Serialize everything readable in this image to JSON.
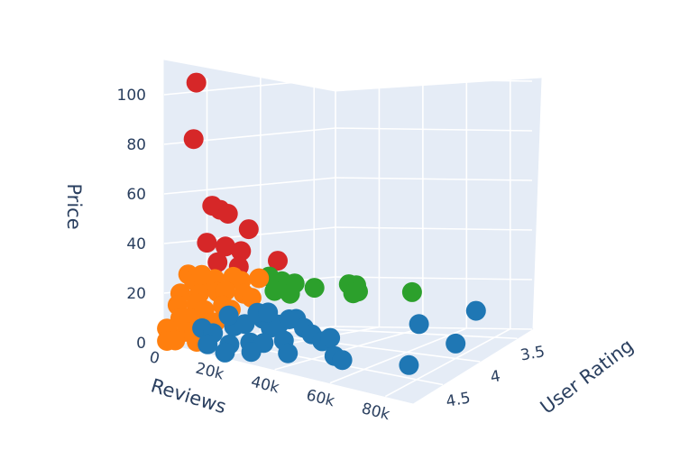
{
  "chart_data": {
    "type": "scatter",
    "title": "",
    "xlabel": "Reviews",
    "ylabel": "User Rating",
    "zlabel": "Price",
    "x_ticks": [
      "0",
      "20k",
      "40k",
      "60k",
      "80k"
    ],
    "y_ticks": [
      "3.5",
      "4",
      "4.5"
    ],
    "z_ticks": [
      "0",
      "20",
      "40",
      "60",
      "80",
      "100"
    ],
    "xlim": [
      0,
      90000
    ],
    "ylim": [
      3.3,
      4.9
    ],
    "zlim": [
      0,
      105
    ],
    "colors": {
      "background": "#ffffff",
      "pane": "#e5ecf6",
      "grid": "#ffffff",
      "text": "#2a3f5f"
    },
    "series": [
      {
        "name": "red",
        "color": "#d62728",
        "points": [
          {
            "reviews": 4000,
            "rating": 4.7,
            "price": 105
          },
          {
            "reviews": 3000,
            "rating": 4.7,
            "price": 82
          },
          {
            "reviews": 2000,
            "rating": 4.5,
            "price": 54
          },
          {
            "reviews": 5000,
            "rating": 4.5,
            "price": 53
          },
          {
            "reviews": 8000,
            "rating": 4.5,
            "price": 52
          },
          {
            "reviews": 12000,
            "rating": 4.4,
            "price": 46
          },
          {
            "reviews": 4000,
            "rating": 4.6,
            "price": 40
          },
          {
            "reviews": 11000,
            "rating": 4.6,
            "price": 40
          },
          {
            "reviews": 13000,
            "rating": 4.5,
            "price": 38
          },
          {
            "reviews": 16000,
            "rating": 4.6,
            "price": 33
          },
          {
            "reviews": 8000,
            "rating": 4.6,
            "price": 33
          },
          {
            "reviews": 27000,
            "rating": 4.5,
            "price": 37
          }
        ]
      },
      {
        "name": "green",
        "color": "#2ca02c",
        "points": [
          {
            "reviews": 16000,
            "rating": 4.3,
            "price": 27
          },
          {
            "reviews": 21000,
            "rating": 4.3,
            "price": 26
          },
          {
            "reviews": 26000,
            "rating": 4.3,
            "price": 26
          },
          {
            "reviews": 30000,
            "rating": 4.2,
            "price": 24
          },
          {
            "reviews": 40000,
            "rating": 4.1,
            "price": 26
          },
          {
            "reviews": 43000,
            "rating": 4.1,
            "price": 26
          },
          {
            "reviews": 38000,
            "rating": 4.0,
            "price": 21
          },
          {
            "reviews": 40000,
            "rating": 4.0,
            "price": 22
          },
          {
            "reviews": 55000,
            "rating": 3.8,
            "price": 21
          },
          {
            "reviews": 22000,
            "rating": 4.4,
            "price": 23
          },
          {
            "reviews": 28000,
            "rating": 4.4,
            "price": 23
          }
        ]
      },
      {
        "name": "orange",
        "color": "#ff7f0e",
        "points": [
          {
            "reviews": 1000,
            "rating": 4.7,
            "price": 27
          },
          {
            "reviews": 3000,
            "rating": 4.7,
            "price": 25
          },
          {
            "reviews": 5000,
            "rating": 4.6,
            "price": 24
          },
          {
            "reviews": 7000,
            "rating": 4.6,
            "price": 26
          },
          {
            "reviews": 10000,
            "rating": 4.5,
            "price": 27
          },
          {
            "reviews": 13000,
            "rating": 4.5,
            "price": 26
          },
          {
            "reviews": 16000,
            "rating": 4.4,
            "price": 27
          },
          {
            "reviews": 2000,
            "rating": 4.8,
            "price": 20
          },
          {
            "reviews": 5000,
            "rating": 4.7,
            "price": 20
          },
          {
            "reviews": 8000,
            "rating": 4.6,
            "price": 21
          },
          {
            "reviews": 11000,
            "rating": 4.6,
            "price": 22
          },
          {
            "reviews": 14000,
            "rating": 4.5,
            "price": 21
          },
          {
            "reviews": 17000,
            "rating": 4.5,
            "price": 20
          },
          {
            "reviews": 1000,
            "rating": 4.8,
            "price": 15
          },
          {
            "reviews": 4000,
            "rating": 4.7,
            "price": 16
          },
          {
            "reviews": 7000,
            "rating": 4.7,
            "price": 14
          },
          {
            "reviews": 10000,
            "rating": 4.6,
            "price": 16
          },
          {
            "reviews": 13000,
            "rating": 4.6,
            "price": 15
          },
          {
            "reviews": 2000,
            "rating": 4.8,
            "price": 10
          },
          {
            "reviews": 5000,
            "rating": 4.8,
            "price": 11
          },
          {
            "reviews": 8000,
            "rating": 4.7,
            "price": 9
          },
          {
            "reviews": 11000,
            "rating": 4.7,
            "price": 10
          },
          {
            "reviews": 1000,
            "rating": 4.9,
            "price": 6
          },
          {
            "reviews": 4000,
            "rating": 4.8,
            "price": 5
          },
          {
            "reviews": 7000,
            "rating": 4.8,
            "price": 6
          },
          {
            "reviews": 10000,
            "rating": 4.8,
            "price": 5
          },
          {
            "reviews": 1000,
            "rating": 4.9,
            "price": 1
          },
          {
            "reviews": 4000,
            "rating": 4.9,
            "price": 2
          },
          {
            "reviews": 8000,
            "rating": 4.8,
            "price": 2
          },
          {
            "reviews": 6000,
            "rating": 4.7,
            "price": 28
          }
        ]
      },
      {
        "name": "blue",
        "color": "#1f77b4",
        "points": [
          {
            "reviews": 10000,
            "rating": 4.8,
            "price": 8
          },
          {
            "reviews": 14000,
            "rating": 4.8,
            "price": 7
          },
          {
            "reviews": 18000,
            "rating": 4.7,
            "price": 10
          },
          {
            "reviews": 22000,
            "rating": 4.7,
            "price": 12
          },
          {
            "reviews": 25000,
            "rating": 4.6,
            "price": 14
          },
          {
            "reviews": 28000,
            "rating": 4.6,
            "price": 11
          },
          {
            "reviews": 31000,
            "rating": 4.6,
            "price": 13
          },
          {
            "reviews": 34000,
            "rating": 4.5,
            "price": 15
          },
          {
            "reviews": 37000,
            "rating": 4.5,
            "price": 12
          },
          {
            "reviews": 40000,
            "rating": 4.5,
            "price": 10
          },
          {
            "reviews": 20000,
            "rating": 4.8,
            "price": 4
          },
          {
            "reviews": 24000,
            "rating": 4.7,
            "price": 5
          },
          {
            "reviews": 29000,
            "rating": 4.7,
            "price": 6
          },
          {
            "reviews": 33000,
            "rating": 4.6,
            "price": 7
          },
          {
            "reviews": 44000,
            "rating": 4.5,
            "price": 8
          },
          {
            "reviews": 47000,
            "rating": 4.5,
            "price": 10
          },
          {
            "reviews": 52000,
            "rating": 4.6,
            "price": 5
          },
          {
            "reviews": 55000,
            "rating": 4.6,
            "price": 4
          },
          {
            "reviews": 16000,
            "rating": 4.7,
            "price": 14
          },
          {
            "reviews": 23000,
            "rating": 4.6,
            "price": 16
          },
          {
            "reviews": 27000,
            "rating": 4.6,
            "price": 17
          },
          {
            "reviews": 35000,
            "rating": 4.6,
            "price": 16
          },
          {
            "reviews": 22000,
            "rating": 4.9,
            "price": 2
          },
          {
            "reviews": 28000,
            "rating": 4.8,
            "price": 3
          },
          {
            "reviews": 65000,
            "rating": 4.0,
            "price": 12
          },
          {
            "reviews": 82000,
            "rating": 3.8,
            "price": 16
          },
          {
            "reviews": 80000,
            "rating": 4.0,
            "price": 6
          },
          {
            "reviews": 74000,
            "rating": 4.4,
            "price": 3
          },
          {
            "reviews": 12000,
            "rating": 4.8,
            "price": 2
          },
          {
            "reviews": 38000,
            "rating": 4.7,
            "price": 4
          }
        ]
      }
    ]
  }
}
